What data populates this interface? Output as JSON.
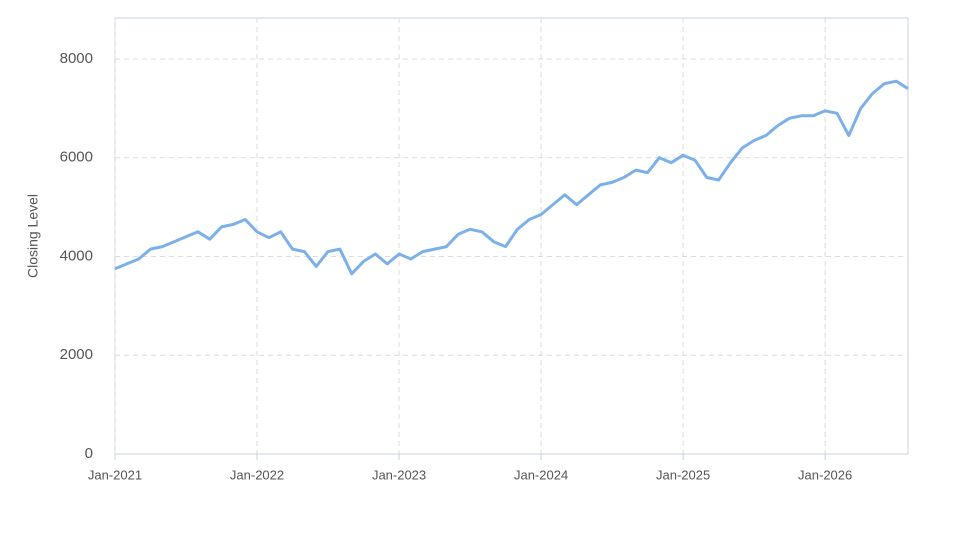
{
  "chart_data": {
    "type": "line",
    "y_label": "Closing Level",
    "x": [
      "2021-01",
      "2021-02",
      "2021-03",
      "2021-04",
      "2021-05",
      "2021-06",
      "2021-07",
      "2021-08",
      "2021-09",
      "2021-10",
      "2021-11",
      "2021-12",
      "2022-01",
      "2022-02",
      "2022-03",
      "2022-04",
      "2022-05",
      "2022-06",
      "2022-07",
      "2022-08",
      "2022-09",
      "2022-10",
      "2022-11",
      "2022-12",
      "2023-01",
      "2023-02",
      "2023-03",
      "2023-04",
      "2023-05",
      "2023-06",
      "2023-07",
      "2023-08",
      "2023-09",
      "2023-10",
      "2023-11",
      "2023-12",
      "2024-01",
      "2024-02",
      "2024-03",
      "2024-04",
      "2024-05",
      "2024-06",
      "2024-07",
      "2024-08",
      "2024-09",
      "2024-10",
      "2024-11",
      "2024-12",
      "2025-01",
      "2025-02",
      "2025-03",
      "2025-04",
      "2025-05",
      "2025-06",
      "2025-07",
      "2025-08",
      "2025-09",
      "2025-10",
      "2025-11",
      "2025-12",
      "2026-01",
      "2026-02",
      "2026-03",
      "2026-04",
      "2026-05",
      "2026-06",
      "2026-07",
      "2026-08"
    ],
    "series": [
      {
        "name": "Closing Level",
        "color": "#7cb0e8",
        "values": [
          3750,
          3850,
          3950,
          4150,
          4200,
          4300,
          4400,
          4500,
          4350,
          4600,
          4650,
          4750,
          4500,
          4380,
          4500,
          4150,
          4100,
          3800,
          4100,
          4150,
          3650,
          3900,
          4050,
          3850,
          4050,
          3950,
          4100,
          4150,
          4200,
          4450,
          4550,
          4500,
          4300,
          4200,
          4550,
          4750,
          4850,
          5050,
          5250,
          5050,
          5250,
          5450,
          5500,
          5600,
          5750,
          5700,
          6000,
          5900,
          6050,
          5950,
          5600,
          5550,
          5900,
          6200,
          6350,
          6450,
          6650,
          6800,
          6850,
          6850,
          6950,
          6900,
          6450,
          7000,
          7300,
          7500,
          7550,
          7400
        ]
      }
    ],
    "xlim": [
      "2021-01",
      "2026-08"
    ],
    "xticks": [
      {
        "value": "2021-01",
        "label": "Jan-2021"
      },
      {
        "value": "2022-01",
        "label": "Jan-2022"
      },
      {
        "value": "2023-01",
        "label": "Jan-2023"
      },
      {
        "value": "2024-01",
        "label": "Jan-2024"
      },
      {
        "value": "2025-01",
        "label": "Jan-2025"
      },
      {
        "value": "2026-01",
        "label": "Jan-2026"
      }
    ],
    "ylim": [
      0,
      8830
    ],
    "yticks": [
      0,
      2000,
      4000,
      6000,
      8000
    ],
    "grid": true
  }
}
